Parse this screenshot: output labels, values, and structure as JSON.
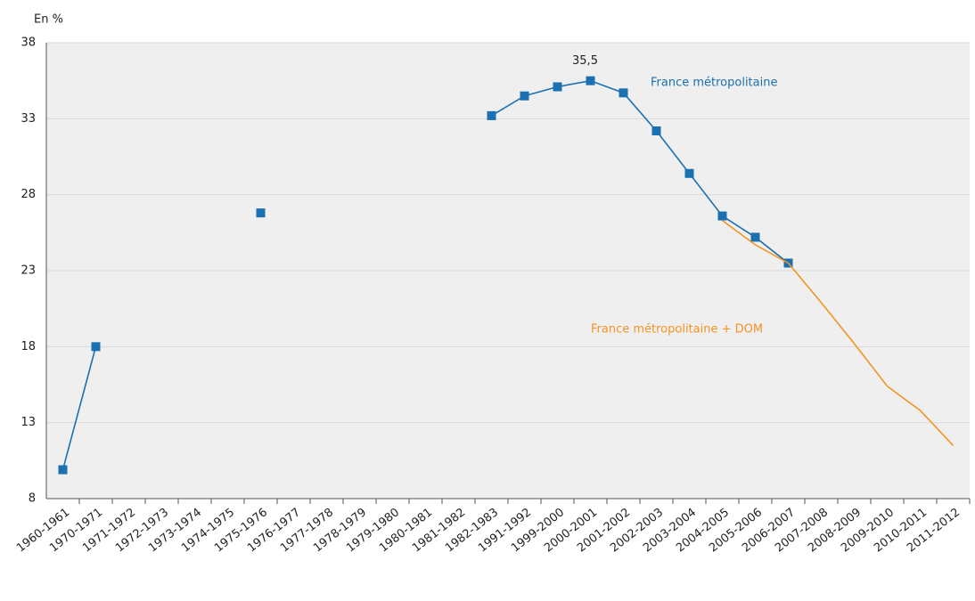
{
  "chart_data": {
    "type": "line",
    "y_label": "En %",
    "categories": [
      "1960-1961",
      "1970-1971",
      "1971-1972",
      "1972-1973",
      "1973-1974",
      "1974-1975",
      "1975-1976",
      "1976-1977",
      "1977-1978",
      "1978-1979",
      "1979-1980",
      "1980-1981",
      "1981-1982",
      "1982-1983",
      "1991-1992",
      "1999-2000",
      "2000-2001",
      "2001-2002",
      "2002-2003",
      "2003-2004",
      "2004-2005",
      "2005-2006",
      "2006-2007",
      "2007-2008",
      "2008-2009",
      "2009-2010",
      "2010-2011",
      "2011-2012"
    ],
    "series": [
      {
        "name": "France métropolitaine",
        "color": "#1a70b0",
        "markers": true,
        "values": [
          9.9,
          18.0,
          null,
          null,
          null,
          null,
          26.8,
          null,
          null,
          null,
          null,
          null,
          null,
          33.2,
          34.5,
          35.1,
          35.5,
          34.7,
          32.2,
          29.4,
          26.6,
          25.2,
          23.5,
          null,
          null,
          null,
          null,
          null
        ],
        "value_labels": [
          null,
          null,
          null,
          null,
          null,
          null,
          null,
          null,
          null,
          null,
          null,
          null,
          null,
          null,
          null,
          null,
          "35,5",
          null,
          null,
          null,
          null,
          null,
          null,
          null,
          null,
          null,
          null,
          null
        ]
      },
      {
        "name": "France métropolitaine + DOM",
        "color": "#f39323",
        "markers": false,
        "values": [
          null,
          null,
          null,
          null,
          null,
          null,
          null,
          null,
          null,
          null,
          null,
          null,
          null,
          null,
          null,
          null,
          null,
          null,
          null,
          null,
          26.3,
          24.7,
          23.5,
          20.9,
          18.2,
          15.4,
          13.8,
          11.5
        ]
      }
    ],
    "ylim": [
      8,
      38
    ],
    "yticks": [
      8,
      13,
      18,
      23,
      28,
      33,
      38
    ],
    "grid": true
  }
}
